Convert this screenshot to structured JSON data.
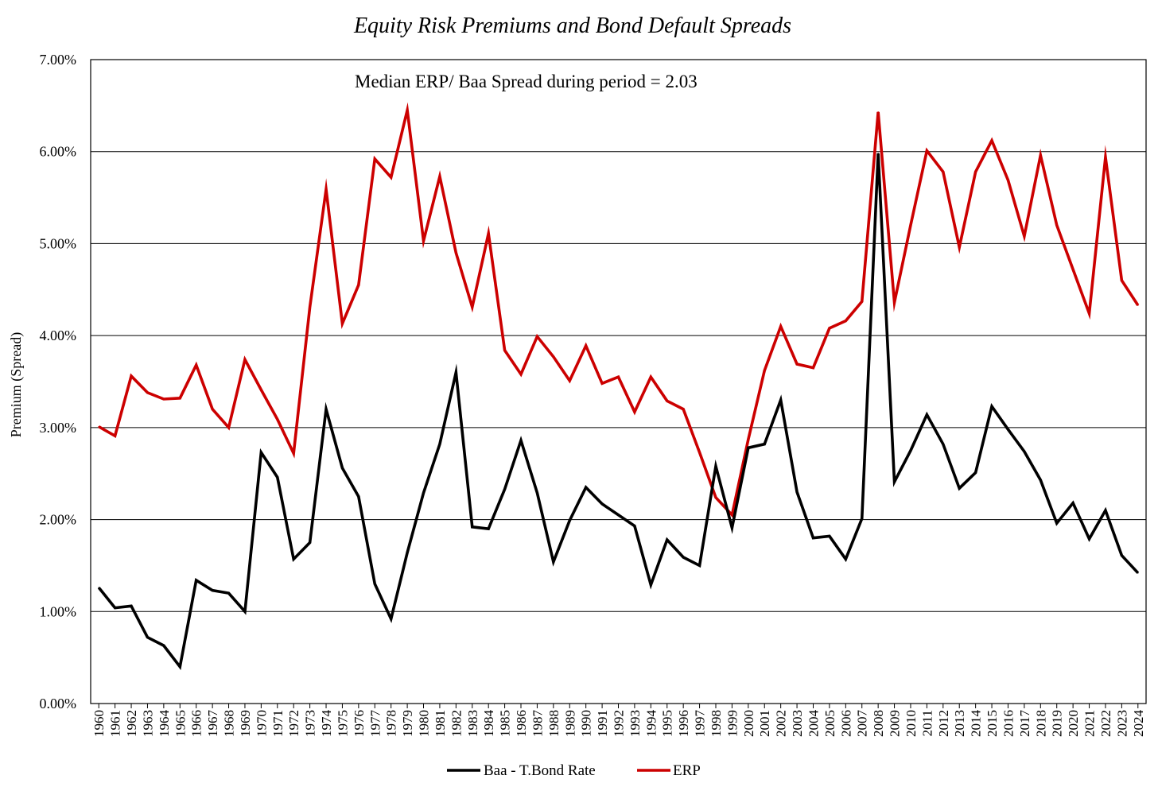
{
  "chart_data": {
    "type": "line",
    "title": "Equity Risk Premiums and Bond Default Spreads",
    "annotation": "Median ERP/ Baa Spread during period = 2.03",
    "ylabel": "Premium (Spread)",
    "xlabel": "",
    "ylim": [
      0,
      7
    ],
    "y_ticks": [
      0,
      1,
      2,
      3,
      4,
      5,
      6,
      7
    ],
    "y_tick_labels": [
      "0.00%",
      "1.00%",
      "2.00%",
      "3.00%",
      "4.00%",
      "5.00%",
      "6.00%",
      "7.00%"
    ],
    "grid": "horizontal",
    "legend_position": "bottom",
    "x": [
      1960,
      1961,
      1962,
      1963,
      1964,
      1965,
      1966,
      1967,
      1968,
      1969,
      1970,
      1971,
      1972,
      1973,
      1974,
      1975,
      1976,
      1977,
      1978,
      1979,
      1980,
      1981,
      1982,
      1983,
      1984,
      1985,
      1986,
      1987,
      1988,
      1989,
      1990,
      1991,
      1992,
      1993,
      1994,
      1995,
      1996,
      1997,
      1998,
      1999,
      2000,
      2001,
      2002,
      2003,
      2004,
      2005,
      2006,
      2007,
      2008,
      2009,
      2010,
      2011,
      2012,
      2013,
      2014,
      2015,
      2016,
      2017,
      2018,
      2019,
      2020,
      2021,
      2022,
      2023,
      2024
    ],
    "series": [
      {
        "name": "Baa - T.Bond Rate",
        "color": "#000000",
        "values": [
          1.26,
          1.04,
          1.06,
          0.72,
          0.63,
          0.4,
          1.34,
          1.23,
          1.2,
          1.0,
          2.73,
          2.46,
          1.57,
          1.75,
          3.2,
          2.56,
          2.25,
          1.3,
          0.92,
          1.64,
          2.29,
          2.82,
          3.6,
          1.92,
          1.9,
          2.33,
          2.86,
          2.29,
          1.54,
          1.99,
          2.35,
          2.17,
          2.05,
          1.93,
          1.29,
          1.78,
          1.59,
          1.5,
          2.58,
          1.91,
          2.78,
          2.82,
          3.3,
          2.3,
          1.8,
          1.82,
          1.57,
          2.01,
          5.98,
          2.41,
          2.75,
          3.14,
          2.82,
          2.34,
          2.51,
          3.23,
          2.98,
          2.74,
          2.43,
          1.96,
          2.18,
          1.79,
          2.1,
          1.61,
          1.42
        ]
      },
      {
        "name": "ERP",
        "color": "#cc0000",
        "values": [
          3.01,
          2.91,
          3.56,
          3.38,
          3.31,
          3.32,
          3.68,
          3.2,
          3.0,
          3.74,
          3.41,
          3.09,
          2.72,
          4.31,
          5.59,
          4.13,
          4.55,
          5.92,
          5.72,
          6.45,
          5.03,
          5.73,
          4.9,
          4.31,
          5.11,
          3.84,
          3.58,
          3.99,
          3.77,
          3.51,
          3.89,
          3.48,
          3.55,
          3.17,
          3.55,
          3.29,
          3.2,
          2.73,
          2.24,
          2.05,
          2.87,
          3.62,
          4.1,
          3.69,
          3.65,
          4.08,
          4.16,
          4.37,
          6.43,
          4.36,
          5.2,
          6.01,
          5.78,
          4.96,
          5.78,
          6.12,
          5.69,
          5.08,
          5.96,
          5.2,
          4.72,
          4.24,
          5.94,
          4.6,
          4.33
        ]
      }
    ]
  }
}
